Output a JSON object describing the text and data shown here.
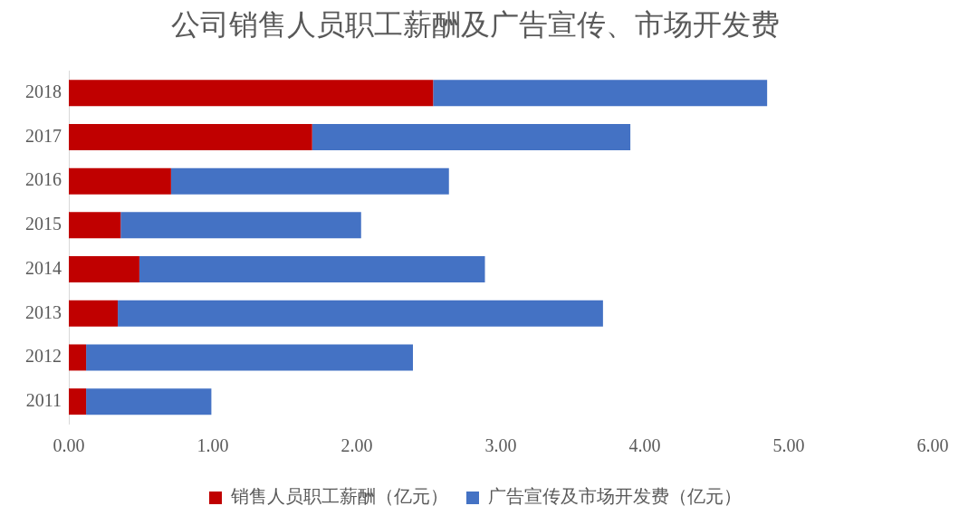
{
  "chart_data": {
    "type": "bar",
    "title": "公司销售人员职工薪酬及广告宣传、市场开发费",
    "orientation": "horizontal",
    "stacked": true,
    "categories": [
      "2018",
      "2017",
      "2016",
      "2015",
      "2014",
      "2013",
      "2012",
      "2011"
    ],
    "series": [
      {
        "name": "销售人员职工薪酬（亿元）",
        "color": "#c00000",
        "values": [
          2.53,
          1.69,
          0.71,
          0.36,
          0.49,
          0.34,
          0.12,
          0.12
        ]
      },
      {
        "name": "广告宣传及市场开发费（亿元）",
        "color": "#4472c4",
        "values": [
          2.32,
          2.21,
          1.93,
          1.67,
          2.4,
          3.37,
          2.27,
          0.87
        ]
      }
    ],
    "xlim": [
      0,
      6
    ],
    "xticks": [
      {
        "value": 0,
        "label": "0.00"
      },
      {
        "value": 1,
        "label": "1.00"
      },
      {
        "value": 2,
        "label": "2.00"
      },
      {
        "value": 3,
        "label": "3.00"
      },
      {
        "value": 4,
        "label": "4.00"
      },
      {
        "value": 5,
        "label": "5.00"
      },
      {
        "value": 6,
        "label": "6.00"
      }
    ],
    "grid": false,
    "legend": "bottom"
  }
}
